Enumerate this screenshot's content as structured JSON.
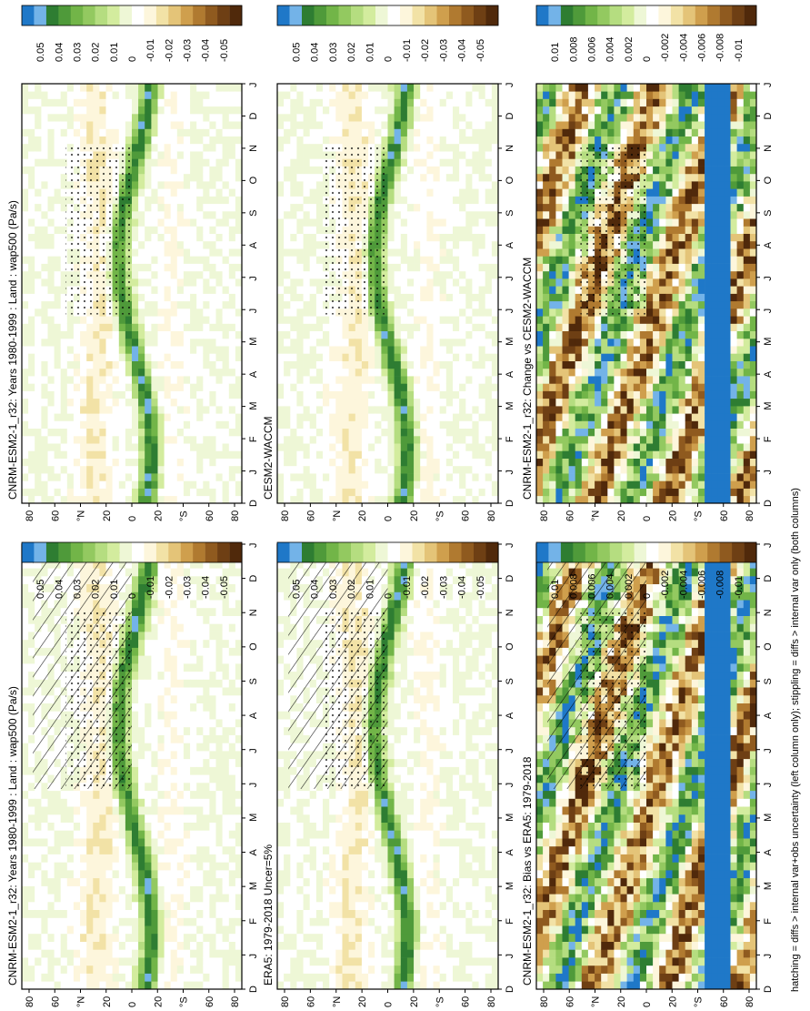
{
  "footer": "hatching = diffs > internal var+obs uncertainty (left column only); stippling = diffs > internal var only (both columns)",
  "colors": {
    "scale": [
      "#1f78c8",
      "#73b3e8",
      "#2e7d32",
      "#4f9a3a",
      "#72b548",
      "#93c960",
      "#b5dd80",
      "#d3ec9e",
      "#eef7d6",
      "#ffffff",
      "#fdf6dc",
      "#f2e2a6",
      "#e4c478",
      "#cf9f4d",
      "#b07a30",
      "#8f5a1f",
      "#6e3f14",
      "#50290b"
    ]
  },
  "chart_data": [
    {
      "type": "heatmap",
      "title": "CNRM-ESM2-1_r32: Years 1980-1999 : Land : wap500 (Pa/s)",
      "months": [
        "D",
        "J",
        "F",
        "M",
        "A",
        "M",
        "J",
        "J",
        "A",
        "S",
        "O",
        "N",
        "D",
        "J"
      ],
      "lat_ticks": [
        "80",
        "60",
        "°N",
        "20",
        "0",
        "20",
        "°S",
        "60",
        "80"
      ],
      "colorbar_labels": [
        "0.05",
        "0.04",
        "0.03",
        "0.02",
        "0.01",
        "0",
        "-0.01",
        "-0.02",
        "-0.03",
        "-0.04",
        "-0.05"
      ]
    },
    {
      "type": "heatmap",
      "title": "CNRM-ESM2-1_r32: Years 1980-1999 : Land : wap500 (Pa/s)",
      "months": [
        "D",
        "J",
        "F",
        "M",
        "A",
        "M",
        "J",
        "J",
        "A",
        "S",
        "O",
        "N",
        "D",
        "J"
      ],
      "lat_ticks": [
        "80",
        "60",
        "°N",
        "20",
        "0",
        "20",
        "°S",
        "60",
        "80"
      ],
      "colorbar_labels": [
        "0.05",
        "0.04",
        "0.03",
        "0.02",
        "0.01",
        "0",
        "-0.01",
        "-0.02",
        "-0.03",
        "-0.04",
        "-0.05"
      ]
    },
    {
      "type": "heatmap",
      "title": "ERA5: 1979-2018 Uncer=5%",
      "months": [
        "D",
        "J",
        "F",
        "M",
        "A",
        "M",
        "J",
        "J",
        "A",
        "S",
        "O",
        "N",
        "D",
        "J"
      ],
      "lat_ticks": [
        "80",
        "60",
        "°N",
        "20",
        "0",
        "20",
        "°S",
        "60",
        "80"
      ],
      "colorbar_labels": [
        "0.05",
        "0.04",
        "0.03",
        "0.02",
        "0.01",
        "0",
        "-0.01",
        "-0.02",
        "-0.03",
        "-0.04",
        "-0.05"
      ]
    },
    {
      "type": "heatmap",
      "title": "CESM2-WACCM",
      "months": [
        "D",
        "J",
        "F",
        "M",
        "A",
        "M",
        "J",
        "J",
        "A",
        "S",
        "O",
        "N",
        "D",
        "J"
      ],
      "lat_ticks": [
        "80",
        "60",
        "°N",
        "20",
        "0",
        "20",
        "°S",
        "60",
        "80"
      ],
      "colorbar_labels": [
        "0.05",
        "0.04",
        "0.03",
        "0.02",
        "0.01",
        "0",
        "-0.01",
        "-0.02",
        "-0.03",
        "-0.04",
        "-0.05"
      ]
    },
    {
      "type": "heatmap",
      "title": "CNRM-ESM2-1_r32: Bias vs ERA5: 1979-2018",
      "months": [
        "D",
        "J",
        "F",
        "M",
        "A",
        "M",
        "J",
        "J",
        "A",
        "S",
        "O",
        "N",
        "D",
        "J"
      ],
      "lat_ticks": [
        "80",
        "60",
        "°N",
        "20",
        "0",
        "20",
        "°S",
        "60",
        "80"
      ],
      "colorbar_labels": [
        "0.01",
        "0.008",
        "0.006",
        "0.004",
        "0.002",
        "0",
        "-0.002",
        "-0.004",
        "-0.006",
        "-0.008",
        "-0.01"
      ]
    },
    {
      "type": "heatmap",
      "title": "CNRM-ESM2-1_r32: Change vs CESM2-WACCM",
      "months": [
        "D",
        "J",
        "F",
        "M",
        "A",
        "M",
        "J",
        "J",
        "A",
        "S",
        "O",
        "N",
        "D",
        "J"
      ],
      "lat_ticks": [
        "80",
        "60",
        "°N",
        "20",
        "0",
        "20",
        "°S",
        "60",
        "80"
      ],
      "colorbar_labels": [
        "0.01",
        "0.008",
        "0.006",
        "0.004",
        "0.002",
        "0",
        "-0.002",
        "-0.004",
        "-0.006",
        "-0.008",
        "-0.01"
      ]
    }
  ]
}
